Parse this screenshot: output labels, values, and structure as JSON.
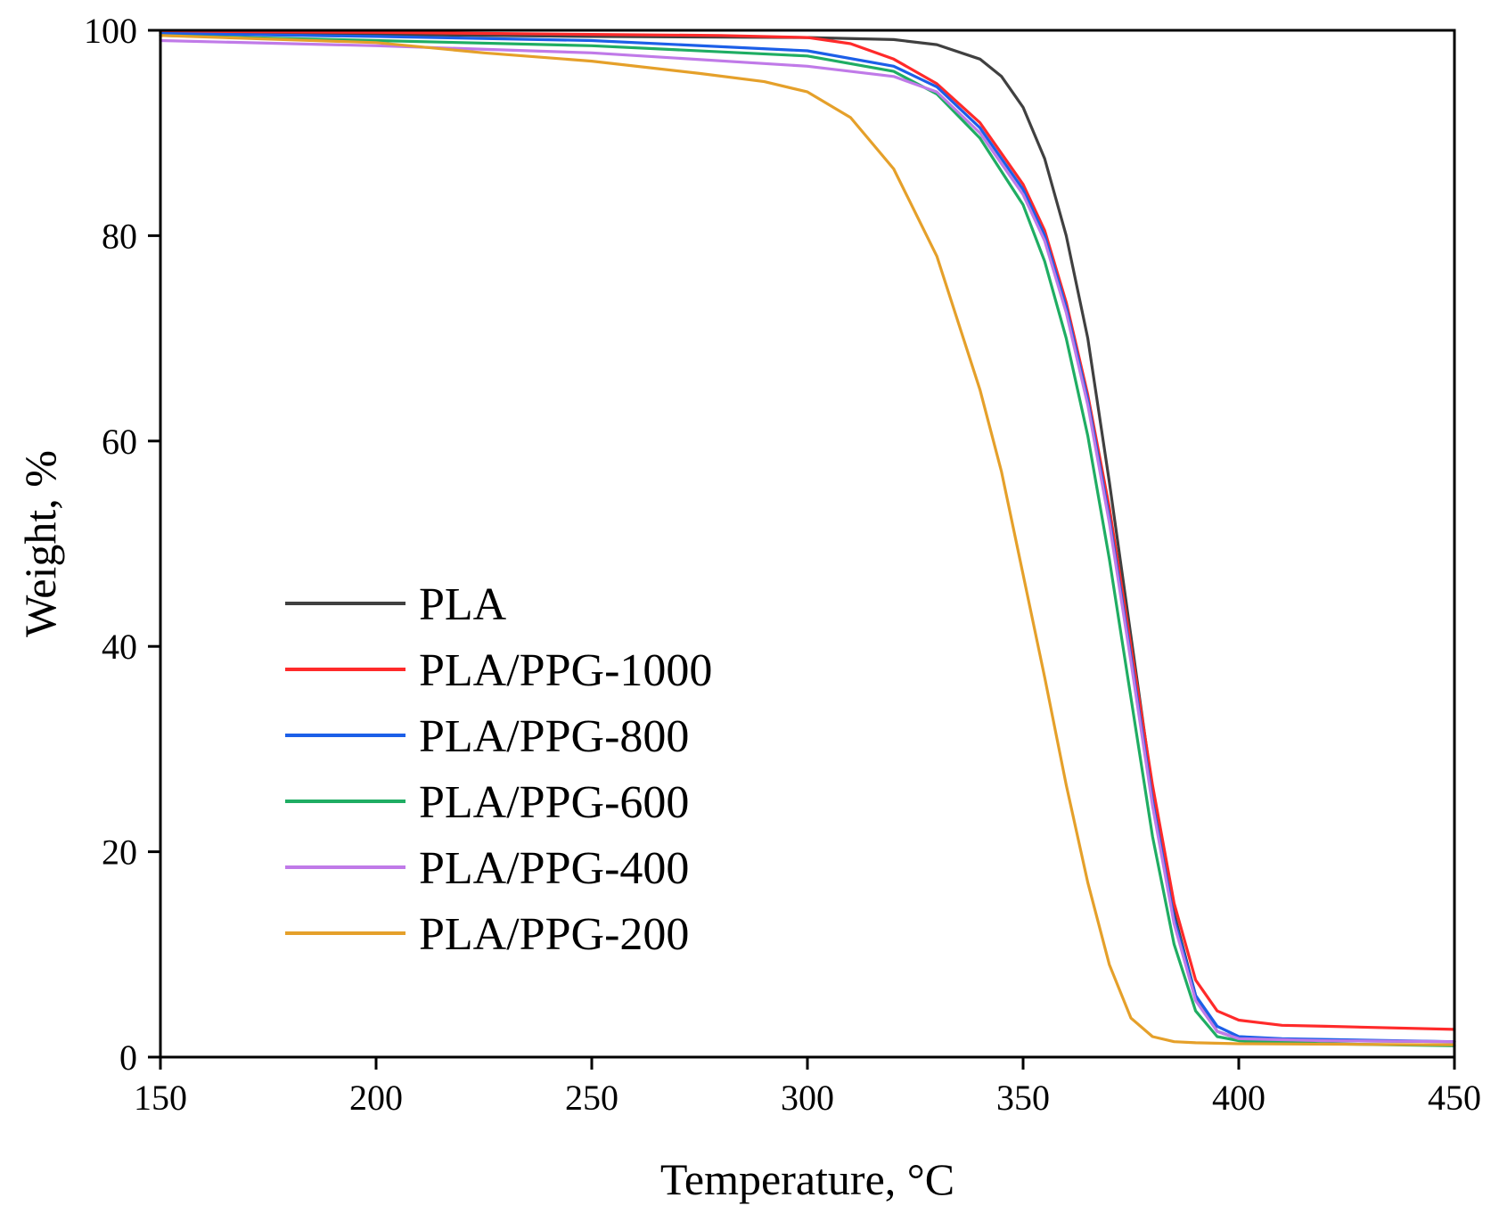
{
  "chart_data": {
    "type": "line",
    "title": "",
    "xlabel": "Temperature, °C",
    "ylabel": "Weight, %",
    "xlim": [
      150,
      450
    ],
    "ylim": [
      0,
      100
    ],
    "xticks": [
      150,
      200,
      250,
      300,
      350,
      400,
      450
    ],
    "yticks": [
      0,
      20,
      40,
      60,
      80,
      100
    ],
    "xtick_labels": [
      "150",
      "200",
      "250",
      "300",
      "350",
      "400",
      "450"
    ],
    "ytick_labels": [
      "0",
      "20",
      "40",
      "60",
      "80",
      "100"
    ],
    "grid": false,
    "legend_position": "lower-left",
    "series": [
      {
        "name": "PLA",
        "color": "#404040",
        "x": [
          150,
          200,
          250,
          300,
          320,
          330,
          340,
          345,
          350,
          355,
          360,
          365,
          370,
          375,
          380,
          385,
          390,
          395,
          400,
          405,
          420,
          450
        ],
        "y": [
          99.8,
          99.6,
          99.4,
          99.3,
          99.1,
          98.6,
          97.2,
          95.5,
          92.5,
          87.5,
          80.0,
          70.0,
          56.0,
          41.0,
          26.0,
          14.0,
          6.0,
          2.5,
          1.8,
          1.7,
          1.6,
          1.5
        ]
      },
      {
        "name": "PLA/PPG-1000",
        "color": "#ff2a2a",
        "x": [
          150,
          200,
          250,
          280,
          300,
          310,
          320,
          330,
          340,
          350,
          355,
          360,
          365,
          370,
          375,
          380,
          385,
          390,
          395,
          400,
          410,
          420,
          450
        ],
        "y": [
          99.9,
          99.8,
          99.6,
          99.5,
          99.3,
          98.7,
          97.2,
          94.8,
          91.0,
          85.0,
          80.5,
          73.5,
          64.5,
          53.5,
          40.0,
          26.5,
          15.0,
          7.5,
          4.5,
          3.6,
          3.1,
          3.0,
          2.7
        ]
      },
      {
        "name": "PLA/PPG-800",
        "color": "#1c5fe8",
        "x": [
          150,
          200,
          250,
          300,
          320,
          330,
          340,
          350,
          355,
          360,
          365,
          370,
          375,
          380,
          385,
          390,
          395,
          400,
          410,
          450
        ],
        "y": [
          99.7,
          99.4,
          99.0,
          98.0,
          96.5,
          94.5,
          90.5,
          84.5,
          80.0,
          73.0,
          64.0,
          52.5,
          39.0,
          25.0,
          13.5,
          6.0,
          3.0,
          2.0,
          1.8,
          1.5
        ]
      },
      {
        "name": "PLA/PPG-600",
        "color": "#1fad63",
        "x": [
          150,
          200,
          250,
          300,
          320,
          330,
          340,
          350,
          355,
          360,
          365,
          370,
          375,
          380,
          385,
          390,
          395,
          400,
          420,
          450
        ],
        "y": [
          99.5,
          99.0,
          98.5,
          97.5,
          96.0,
          93.8,
          89.5,
          83.0,
          77.5,
          70.0,
          60.5,
          48.5,
          35.0,
          21.5,
          11.0,
          4.5,
          2.0,
          1.6,
          1.3,
          1.1
        ]
      },
      {
        "name": "PLA/PPG-400",
        "color": "#c07ae8",
        "x": [
          150,
          200,
          250,
          300,
          320,
          330,
          340,
          350,
          355,
          360,
          365,
          370,
          375,
          380,
          385,
          390,
          395,
          400,
          420,
          450
        ],
        "y": [
          99.0,
          98.5,
          97.8,
          96.5,
          95.5,
          94.0,
          90.0,
          84.0,
          79.5,
          72.5,
          63.5,
          52.0,
          38.5,
          24.5,
          13.0,
          5.5,
          2.5,
          1.8,
          1.6,
          1.5
        ]
      },
      {
        "name": "PLA/PPG-200",
        "color": "#e5a02a",
        "x": [
          150,
          200,
          225,
          250,
          275,
          290,
          300,
          310,
          320,
          330,
          340,
          345,
          350,
          355,
          360,
          365,
          370,
          375,
          380,
          385,
          390,
          400,
          450
        ],
        "y": [
          99.5,
          98.8,
          97.8,
          97.0,
          95.8,
          95.0,
          94.0,
          91.5,
          86.5,
          78.0,
          65.0,
          57.0,
          47.0,
          37.0,
          26.5,
          17.0,
          9.0,
          3.8,
          2.0,
          1.5,
          1.4,
          1.3,
          1.2
        ]
      }
    ]
  }
}
